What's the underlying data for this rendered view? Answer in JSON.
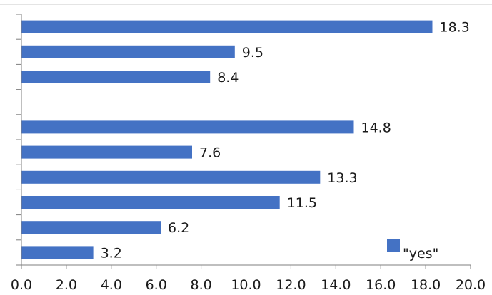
{
  "chart_data": {
    "type": "bar",
    "orientation": "horizontal",
    "series": [
      {
        "name": "\"yes\"",
        "color": "#4472c4",
        "values": [
          3.2,
          6.2,
          11.5,
          13.3,
          7.6,
          14.8,
          null,
          8.4,
          9.5,
          18.3
        ]
      }
    ],
    "data_labels": [
      "3.2",
      "6.2",
      "11.5",
      "13.3",
      "7.6",
      "14.8",
      "",
      "8.4",
      "9.5",
      "18.3"
    ],
    "x_ticks": [
      "0.0",
      "2.0",
      "4.0",
      "6.0",
      "8.0",
      "10.0",
      "12.0",
      "14.0",
      "16.0",
      "18.0",
      "20.0"
    ],
    "xlim": [
      0,
      20
    ],
    "grid": false,
    "legend": {
      "position": "bottom-right",
      "label": "\"yes\""
    }
  }
}
